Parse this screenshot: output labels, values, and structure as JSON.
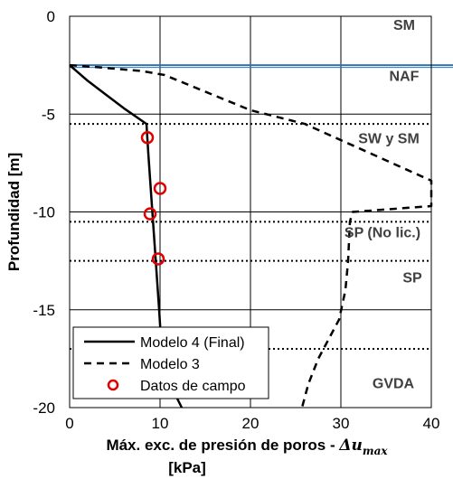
{
  "chart_data": {
    "type": "line",
    "title": "",
    "xlabel_main": "Máx. exc. de presión de poros - ",
    "xlabel_symbol": "Δu",
    "xlabel_sub": "max",
    "xlabel_units": "[kPa]",
    "ylabel": "Profundidad [m]",
    "xlim": [
      0,
      40
    ],
    "ylim": [
      -20,
      0
    ],
    "x_ticks": [
      0,
      10,
      20,
      30,
      40
    ],
    "y_ticks": [
      0,
      -5,
      -10,
      -15,
      -20
    ],
    "grid": true,
    "water_table_depth": -2.5,
    "layer_boundaries": [
      -5.5,
      -10.5,
      -12.5,
      -17.0
    ],
    "layer_labels": [
      {
        "text": "SM",
        "x": 37,
        "y": -0.7
      },
      {
        "text": "NAF",
        "x": 37,
        "y": -3.3
      },
      {
        "text": "SW y SM",
        "x": 35.3,
        "y": -6.5
      },
      {
        "text": "SP (No lic.)",
        "x": 34.6,
        "y": -11.3
      },
      {
        "text": "SP",
        "x": 37.9,
        "y": -13.6
      },
      {
        "text": "GVDA",
        "x": 35.8,
        "y": -19.0
      }
    ],
    "series": [
      {
        "name": "Modelo 4 (Final)",
        "style": "solid",
        "color": "#000000",
        "x": [
          0,
          2,
          4,
          6,
          8.5,
          8.7,
          9.0,
          9.3,
          9.6,
          9.9,
          10.1,
          10.3,
          11.0,
          12.4
        ],
        "y": [
          -2.5,
          -3.3,
          -4.0,
          -4.7,
          -5.5,
          -7.0,
          -9.0,
          -11.0,
          -13.0,
          -15.0,
          -16.5,
          -17.5,
          -18.7,
          -20.0
        ]
      },
      {
        "name": "Modelo 3",
        "style": "dashed",
        "color": "#000000",
        "x": [
          0,
          3,
          8,
          10.5,
          20,
          26,
          40,
          40,
          31.3,
          31.0,
          30.8,
          30.5,
          29.8,
          27.5,
          26.4,
          25.7
        ],
        "y": [
          -2.5,
          -2.6,
          -2.8,
          -3.0,
          -4.8,
          -5.5,
          -8.4,
          -9.7,
          -10.0,
          -10.5,
          -12.5,
          -14.0,
          -15.5,
          -17.5,
          -18.8,
          -20.0
        ]
      },
      {
        "name": "Datos de campo",
        "style": "markers",
        "color": "#e00000",
        "x": [
          8.6,
          10.0,
          8.9,
          9.8
        ],
        "y": [
          -6.2,
          -8.8,
          -10.1,
          -12.4
        ]
      }
    ]
  }
}
